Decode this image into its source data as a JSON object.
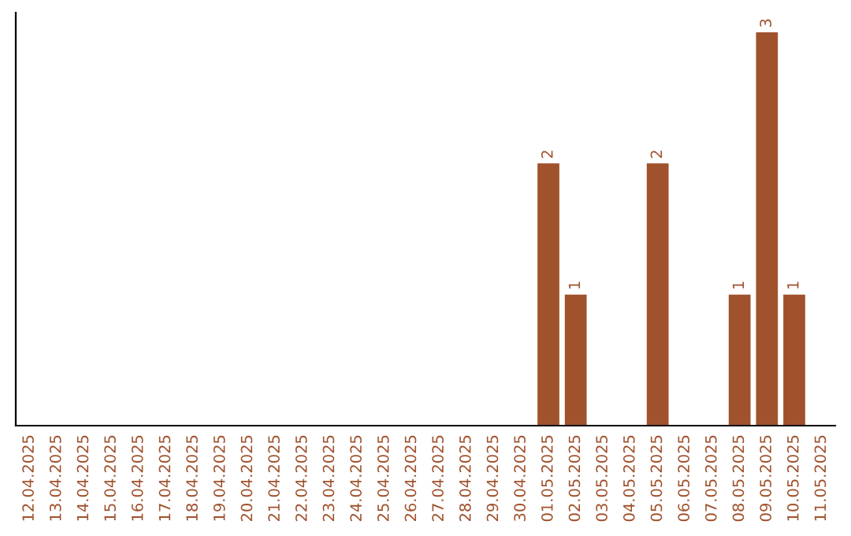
{
  "chart_data": {
    "type": "bar",
    "categories": [
      "12.04.2025",
      "13.04.2025",
      "14.04.2025",
      "15.04.2025",
      "16.04.2025",
      "17.04.2025",
      "18.04.2025",
      "19.04.2025",
      "20.04.2025",
      "21.04.2025",
      "22.04.2025",
      "23.04.2025",
      "24.04.2025",
      "25.04.2025",
      "26.04.2025",
      "27.04.2025",
      "28.04.2025",
      "29.04.2025",
      "30.04.2025",
      "01.05.2025",
      "02.05.2025",
      "03.05.2025",
      "04.05.2025",
      "05.05.2025",
      "06.05.2025",
      "07.05.2025",
      "08.05.2025",
      "09.05.2025",
      "10.05.2025",
      "11.05.2025"
    ],
    "values": [
      null,
      null,
      null,
      null,
      null,
      null,
      null,
      null,
      null,
      null,
      null,
      null,
      null,
      null,
      null,
      null,
      null,
      null,
      null,
      2,
      1,
      null,
      null,
      2,
      null,
      null,
      1,
      3,
      1,
      null
    ],
    "value_labels": [
      null,
      null,
      null,
      null,
      null,
      null,
      null,
      null,
      null,
      null,
      null,
      null,
      null,
      null,
      null,
      null,
      null,
      null,
      null,
      "2",
      "1",
      null,
      null,
      "2",
      null,
      null,
      "1",
      "3",
      "1",
      null
    ],
    "color": "#a0522d",
    "grid": false,
    "legend": false
  }
}
